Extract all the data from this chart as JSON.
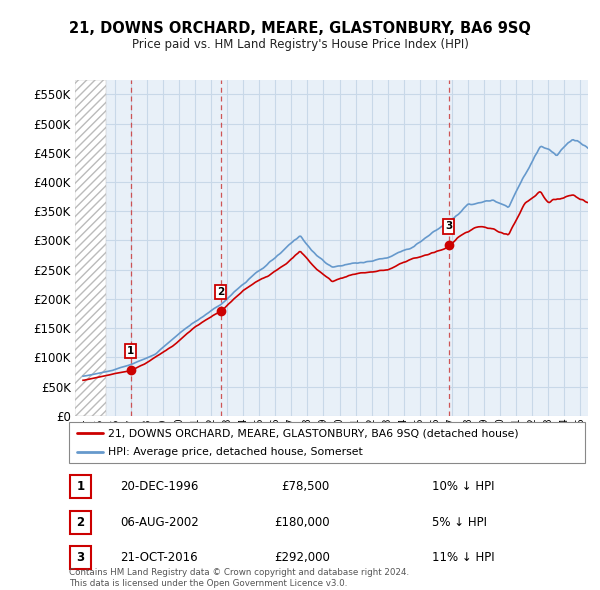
{
  "title": "21, DOWNS ORCHARD, MEARE, GLASTONBURY, BA6 9SQ",
  "subtitle": "Price paid vs. HM Land Registry's House Price Index (HPI)",
  "legend_line1": "21, DOWNS ORCHARD, MEARE, GLASTONBURY, BA6 9SQ (detached house)",
  "legend_line2": "HPI: Average price, detached house, Somerset",
  "sale_points": [
    {
      "label": "1",
      "date_dec": 1996.97,
      "price": 78500
    },
    {
      "label": "2",
      "date_dec": 2002.59,
      "price": 180000
    },
    {
      "label": "3",
      "date_dec": 2016.81,
      "price": 292000
    }
  ],
  "table_rows": [
    {
      "num": "1",
      "date": "20-DEC-1996",
      "price": "£78,500",
      "hpi": "10% ↓ HPI"
    },
    {
      "num": "2",
      "date": "06-AUG-2002",
      "price": "£180,000",
      "hpi": "5% ↓ HPI"
    },
    {
      "num": "3",
      "date": "21-OCT-2016",
      "price": "£292,000",
      "hpi": "11% ↓ HPI"
    }
  ],
  "footnote1": "Contains HM Land Registry data © Crown copyright and database right 2024.",
  "footnote2": "This data is licensed under the Open Government Licence v3.0.",
  "ylim": [
    0,
    575000
  ],
  "yticks": [
    0,
    50000,
    100000,
    150000,
    200000,
    250000,
    300000,
    350000,
    400000,
    450000,
    500000,
    550000
  ],
  "xlim_start": 1993.5,
  "xlim_end": 2025.5,
  "hatch_end": 1995.42,
  "color_red": "#cc0000",
  "color_blue": "#6699cc",
  "color_grid": "#c8d8e8",
  "bg_color": "#ffffff",
  "plot_bg": "#e8f0f8"
}
